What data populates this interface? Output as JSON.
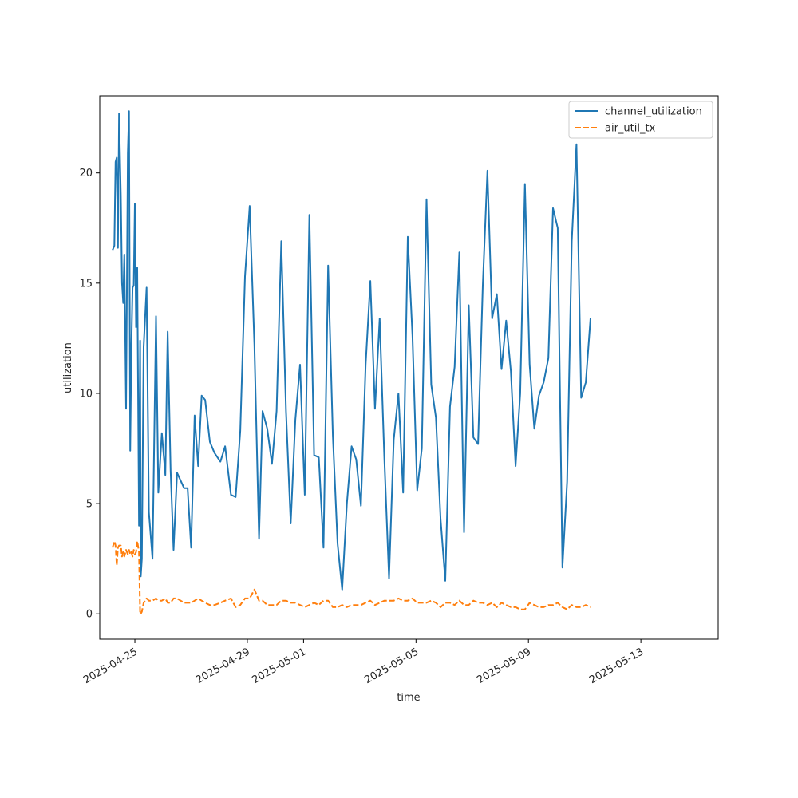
{
  "chart_data": {
    "type": "line",
    "title": "",
    "xlabel": "time",
    "ylabel": "utilization",
    "x_type": "date",
    "xlim": [
      "2025-04-23T18:00",
      "2025-05-15T18:00"
    ],
    "ylim": [
      -1.15,
      23.5
    ],
    "x_ticks": [
      {
        "value": "2025-04-25",
        "label": "2025-04-25"
      },
      {
        "value": "2025-04-29",
        "label": "2025-04-29"
      },
      {
        "value": "2025-05-01",
        "label": "2025-05-01"
      },
      {
        "value": "2025-05-05",
        "label": "2025-05-05"
      },
      {
        "value": "2025-05-09",
        "label": "2025-05-09"
      },
      {
        "value": "2025-05-13",
        "label": "2025-05-13"
      }
    ],
    "y_ticks": [
      0,
      5,
      10,
      15,
      20
    ],
    "grid": false,
    "legend_position": "top-right",
    "series": [
      {
        "name": "channel_utilization",
        "color": "#1f77b4",
        "dash": "solid",
        "points": [
          [
            "2025-04-24T05:00",
            16.5
          ],
          [
            "2025-04-24T06:30",
            16.7
          ],
          [
            "2025-04-24T07:30",
            20.5
          ],
          [
            "2025-04-24T08:30",
            20.7
          ],
          [
            "2025-04-24T09:30",
            16.6
          ],
          [
            "2025-04-24T10:30",
            22.7
          ],
          [
            "2025-04-24T12:00",
            19.0
          ],
          [
            "2025-04-24T13:00",
            15.0
          ],
          [
            "2025-04-24T14:00",
            14.1
          ],
          [
            "2025-04-24T15:00",
            16.3
          ],
          [
            "2025-04-24T16:30",
            9.3
          ],
          [
            "2025-04-24T18:00",
            20.9
          ],
          [
            "2025-04-24T19:00",
            22.8
          ],
          [
            "2025-04-24T20:00",
            7.4
          ],
          [
            "2025-04-24T21:00",
            12.0
          ],
          [
            "2025-04-24T22:00",
            14.8
          ],
          [
            "2025-04-24T23:00",
            14.9
          ],
          [
            "2025-04-25T00:00",
            18.6
          ],
          [
            "2025-04-25T01:00",
            13.0
          ],
          [
            "2025-04-25T02:00",
            15.7
          ],
          [
            "2025-04-25T03:30",
            4.0
          ],
          [
            "2025-04-25T04:30",
            12.4
          ],
          [
            "2025-04-25T05:00",
            1.7
          ],
          [
            "2025-04-25T06:00",
            2.5
          ],
          [
            "2025-04-25T07:30",
            12.1
          ],
          [
            "2025-04-25T10:00",
            14.8
          ],
          [
            "2025-04-25T12:00",
            4.6
          ],
          [
            "2025-04-25T15:00",
            2.5
          ],
          [
            "2025-04-25T18:00",
            13.5
          ],
          [
            "2025-04-25T20:00",
            5.5
          ],
          [
            "2025-04-25T23:00",
            8.2
          ],
          [
            "2025-04-26T02:00",
            6.3
          ],
          [
            "2025-04-26T04:00",
            12.8
          ],
          [
            "2025-04-26T06:30",
            6.5
          ],
          [
            "2025-04-26T09:00",
            2.9
          ],
          [
            "2025-04-26T12:00",
            6.4
          ],
          [
            "2025-04-26T18:00",
            5.7
          ],
          [
            "2025-04-26T21:00",
            5.7
          ],
          [
            "2025-04-27T00:00",
            3.0
          ],
          [
            "2025-04-27T03:00",
            9.0
          ],
          [
            "2025-04-27T06:00",
            6.7
          ],
          [
            "2025-04-27T09:00",
            9.9
          ],
          [
            "2025-04-27T12:00",
            9.7
          ],
          [
            "2025-04-27T16:00",
            7.8
          ],
          [
            "2025-04-27T20:00",
            7.3
          ],
          [
            "2025-04-28T01:00",
            6.9
          ],
          [
            "2025-04-28T05:00",
            7.6
          ],
          [
            "2025-04-28T10:00",
            5.4
          ],
          [
            "2025-04-28T14:00",
            5.3
          ],
          [
            "2025-04-28T18:00",
            8.3
          ],
          [
            "2025-04-28T22:00",
            15.3
          ],
          [
            "2025-04-29T02:00",
            18.5
          ],
          [
            "2025-04-29T06:00",
            12.2
          ],
          [
            "2025-04-29T10:00",
            3.4
          ],
          [
            "2025-04-29T13:00",
            9.2
          ],
          [
            "2025-04-29T17:00",
            8.4
          ],
          [
            "2025-04-29T21:00",
            6.8
          ],
          [
            "2025-04-30T01:00",
            9.2
          ],
          [
            "2025-04-30T05:00",
            16.9
          ],
          [
            "2025-04-30T09:00",
            9.2
          ],
          [
            "2025-04-30T13:00",
            4.1
          ],
          [
            "2025-04-30T17:00",
            8.8
          ],
          [
            "2025-04-30T21:00",
            11.3
          ],
          [
            "2025-05-01T01:00",
            5.4
          ],
          [
            "2025-05-01T05:00",
            18.1
          ],
          [
            "2025-05-01T09:00",
            7.2
          ],
          [
            "2025-05-01T13:00",
            7.1
          ],
          [
            "2025-05-01T17:00",
            3.0
          ],
          [
            "2025-05-01T21:00",
            15.8
          ],
          [
            "2025-05-02T01:00",
            8.1
          ],
          [
            "2025-05-02T05:00",
            3.2
          ],
          [
            "2025-05-02T09:00",
            1.1
          ],
          [
            "2025-05-02T13:00",
            5.0
          ],
          [
            "2025-05-02T17:00",
            7.6
          ],
          [
            "2025-05-02T21:00",
            7.0
          ],
          [
            "2025-05-03T01:00",
            4.9
          ],
          [
            "2025-05-03T05:00",
            11.3
          ],
          [
            "2025-05-03T09:00",
            15.1
          ],
          [
            "2025-05-03T13:00",
            9.3
          ],
          [
            "2025-05-03T17:00",
            13.4
          ],
          [
            "2025-05-03T21:00",
            7.0
          ],
          [
            "2025-05-04T01:00",
            1.6
          ],
          [
            "2025-05-04T05:00",
            7.9
          ],
          [
            "2025-05-04T09:00",
            10.0
          ],
          [
            "2025-05-04T13:00",
            5.5
          ],
          [
            "2025-05-04T17:00",
            17.1
          ],
          [
            "2025-05-04T21:00",
            12.6
          ],
          [
            "2025-05-05T01:00",
            5.6
          ],
          [
            "2025-05-05T05:00",
            7.5
          ],
          [
            "2025-05-05T09:00",
            18.8
          ],
          [
            "2025-05-05T13:00",
            10.4
          ],
          [
            "2025-05-05T17:00",
            8.9
          ],
          [
            "2025-05-05T21:00",
            4.3
          ],
          [
            "2025-05-06T01:00",
            1.5
          ],
          [
            "2025-05-06T05:00",
            9.4
          ],
          [
            "2025-05-06T09:00",
            11.2
          ],
          [
            "2025-05-06T13:00",
            16.4
          ],
          [
            "2025-05-06T17:00",
            3.7
          ],
          [
            "2025-05-06T21:00",
            14.0
          ],
          [
            "2025-05-07T01:00",
            8.0
          ],
          [
            "2025-05-07T05:00",
            7.7
          ],
          [
            "2025-05-07T09:00",
            14.9
          ],
          [
            "2025-05-07T13:00",
            20.1
          ],
          [
            "2025-05-07T17:00",
            13.4
          ],
          [
            "2025-05-07T21:00",
            14.5
          ],
          [
            "2025-05-08T01:00",
            11.1
          ],
          [
            "2025-05-08T05:00",
            13.3
          ],
          [
            "2025-05-08T09:00",
            11.0
          ],
          [
            "2025-05-08T13:00",
            6.7
          ],
          [
            "2025-05-08T17:00",
            10.0
          ],
          [
            "2025-05-08T21:00",
            19.5
          ],
          [
            "2025-05-09T01:00",
            11.3
          ],
          [
            "2025-05-09T05:00",
            8.4
          ],
          [
            "2025-05-09T09:00",
            9.9
          ],
          [
            "2025-05-09T13:00",
            10.5
          ],
          [
            "2025-05-09T17:00",
            11.6
          ],
          [
            "2025-05-09T21:00",
            18.4
          ],
          [
            "2025-05-10T01:00",
            17.5
          ],
          [
            "2025-05-10T05:00",
            2.1
          ],
          [
            "2025-05-10T09:00",
            6.0
          ],
          [
            "2025-05-10T13:00",
            16.9
          ],
          [
            "2025-05-10T17:00",
            21.3
          ],
          [
            "2025-05-10T21:00",
            9.8
          ],
          [
            "2025-05-11T01:00",
            10.5
          ],
          [
            "2025-05-11T05:00",
            13.4
          ]
        ]
      },
      {
        "name": "air_util_tx",
        "color": "#ff7f0e",
        "dash": "dashed",
        "points": [
          [
            "2025-04-24T05:00",
            3.0
          ],
          [
            "2025-04-24T06:30",
            3.3
          ],
          [
            "2025-04-24T07:30",
            3.1
          ],
          [
            "2025-04-24T08:30",
            2.2
          ],
          [
            "2025-04-24T09:30",
            3.0
          ],
          [
            "2025-04-24T10:30",
            3.1
          ],
          [
            "2025-04-24T12:00",
            3.1
          ],
          [
            "2025-04-24T13:00",
            2.6
          ],
          [
            "2025-04-24T14:00",
            2.8
          ],
          [
            "2025-04-24T15:00",
            2.6
          ],
          [
            "2025-04-24T16:30",
            2.9
          ],
          [
            "2025-04-24T18:00",
            2.7
          ],
          [
            "2025-04-24T19:00",
            2.9
          ],
          [
            "2025-04-24T20:00",
            2.7
          ],
          [
            "2025-04-24T21:00",
            2.8
          ],
          [
            "2025-04-24T22:00",
            2.6
          ],
          [
            "2025-04-24T23:00",
            2.9
          ],
          [
            "2025-04-25T00:00",
            2.7
          ],
          [
            "2025-04-25T01:00",
            2.8
          ],
          [
            "2025-04-25T02:00",
            3.3
          ],
          [
            "2025-04-25T03:30",
            2.8
          ],
          [
            "2025-04-25T04:30",
            0.0
          ],
          [
            "2025-04-25T05:00",
            0.0
          ],
          [
            "2025-04-25T06:00",
            0.1
          ],
          [
            "2025-04-25T07:30",
            0.5
          ],
          [
            "2025-04-25T10:00",
            0.7
          ],
          [
            "2025-04-25T12:00",
            0.6
          ],
          [
            "2025-04-25T15:00",
            0.6
          ],
          [
            "2025-04-25T18:00",
            0.7
          ],
          [
            "2025-04-25T20:00",
            0.6
          ],
          [
            "2025-04-25T23:00",
            0.6
          ],
          [
            "2025-04-26T02:00",
            0.7
          ],
          [
            "2025-04-26T04:00",
            0.5
          ],
          [
            "2025-04-26T06:30",
            0.5
          ],
          [
            "2025-04-26T09:00",
            0.7
          ],
          [
            "2025-04-26T12:00",
            0.7
          ],
          [
            "2025-04-26T18:00",
            0.5
          ],
          [
            "2025-04-26T21:00",
            0.5
          ],
          [
            "2025-04-27T00:00",
            0.5
          ],
          [
            "2025-04-27T03:00",
            0.6
          ],
          [
            "2025-04-27T06:00",
            0.7
          ],
          [
            "2025-04-27T09:00",
            0.6
          ],
          [
            "2025-04-27T12:00",
            0.5
          ],
          [
            "2025-04-27T16:00",
            0.4
          ],
          [
            "2025-04-27T20:00",
            0.4
          ],
          [
            "2025-04-28T01:00",
            0.5
          ],
          [
            "2025-04-28T05:00",
            0.6
          ],
          [
            "2025-04-28T10:00",
            0.7
          ],
          [
            "2025-04-28T14:00",
            0.3
          ],
          [
            "2025-04-28T18:00",
            0.4
          ],
          [
            "2025-04-28T22:00",
            0.7
          ],
          [
            "2025-04-29T02:00",
            0.7
          ],
          [
            "2025-04-29T06:00",
            1.1
          ],
          [
            "2025-04-29T10:00",
            0.6
          ],
          [
            "2025-04-29T13:00",
            0.6
          ],
          [
            "2025-04-29T17:00",
            0.4
          ],
          [
            "2025-04-29T21:00",
            0.4
          ],
          [
            "2025-04-30T01:00",
            0.4
          ],
          [
            "2025-04-30T05:00",
            0.6
          ],
          [
            "2025-04-30T09:00",
            0.6
          ],
          [
            "2025-04-30T13:00",
            0.5
          ],
          [
            "2025-04-30T17:00",
            0.5
          ],
          [
            "2025-04-30T21:00",
            0.4
          ],
          [
            "2025-05-01T01:00",
            0.3
          ],
          [
            "2025-05-01T05:00",
            0.4
          ],
          [
            "2025-05-01T09:00",
            0.5
          ],
          [
            "2025-05-01T13:00",
            0.4
          ],
          [
            "2025-05-01T17:00",
            0.6
          ],
          [
            "2025-05-01T21:00",
            0.6
          ],
          [
            "2025-05-02T01:00",
            0.3
          ],
          [
            "2025-05-02T05:00",
            0.3
          ],
          [
            "2025-05-02T09:00",
            0.4
          ],
          [
            "2025-05-02T13:00",
            0.3
          ],
          [
            "2025-05-02T17:00",
            0.4
          ],
          [
            "2025-05-02T21:00",
            0.4
          ],
          [
            "2025-05-03T01:00",
            0.4
          ],
          [
            "2025-05-03T05:00",
            0.5
          ],
          [
            "2025-05-03T09:00",
            0.6
          ],
          [
            "2025-05-03T13:00",
            0.4
          ],
          [
            "2025-05-03T17:00",
            0.5
          ],
          [
            "2025-05-03T21:00",
            0.6
          ],
          [
            "2025-05-04T01:00",
            0.6
          ],
          [
            "2025-05-04T05:00",
            0.6
          ],
          [
            "2025-05-04T09:00",
            0.7
          ],
          [
            "2025-05-04T13:00",
            0.6
          ],
          [
            "2025-05-04T17:00",
            0.6
          ],
          [
            "2025-05-04T21:00",
            0.7
          ],
          [
            "2025-05-05T01:00",
            0.5
          ],
          [
            "2025-05-05T05:00",
            0.5
          ],
          [
            "2025-05-05T09:00",
            0.5
          ],
          [
            "2025-05-05T13:00",
            0.6
          ],
          [
            "2025-05-05T17:00",
            0.5
          ],
          [
            "2025-05-05T21:00",
            0.3
          ],
          [
            "2025-05-06T01:00",
            0.5
          ],
          [
            "2025-05-06T05:00",
            0.5
          ],
          [
            "2025-05-06T09:00",
            0.4
          ],
          [
            "2025-05-06T13:00",
            0.6
          ],
          [
            "2025-05-06T17:00",
            0.4
          ],
          [
            "2025-05-06T21:00",
            0.4
          ],
          [
            "2025-05-07T01:00",
            0.6
          ],
          [
            "2025-05-07T05:00",
            0.5
          ],
          [
            "2025-05-07T09:00",
            0.5
          ],
          [
            "2025-05-07T13:00",
            0.4
          ],
          [
            "2025-05-07T17:00",
            0.5
          ],
          [
            "2025-05-07T21:00",
            0.3
          ],
          [
            "2025-05-08T01:00",
            0.5
          ],
          [
            "2025-05-08T05:00",
            0.4
          ],
          [
            "2025-05-08T09:00",
            0.3
          ],
          [
            "2025-05-08T13:00",
            0.3
          ],
          [
            "2025-05-08T17:00",
            0.2
          ],
          [
            "2025-05-08T21:00",
            0.2
          ],
          [
            "2025-05-09T01:00",
            0.5
          ],
          [
            "2025-05-09T05:00",
            0.4
          ],
          [
            "2025-05-09T09:00",
            0.3
          ],
          [
            "2025-05-09T13:00",
            0.3
          ],
          [
            "2025-05-09T17:00",
            0.4
          ],
          [
            "2025-05-09T21:00",
            0.4
          ],
          [
            "2025-05-10T01:00",
            0.5
          ],
          [
            "2025-05-10T05:00",
            0.3
          ],
          [
            "2025-05-10T09:00",
            0.2
          ],
          [
            "2025-05-10T13:00",
            0.4
          ],
          [
            "2025-05-10T17:00",
            0.3
          ],
          [
            "2025-05-10T21:00",
            0.3
          ],
          [
            "2025-05-11T01:00",
            0.4
          ],
          [
            "2025-05-11T05:00",
            0.3
          ]
        ]
      }
    ]
  }
}
